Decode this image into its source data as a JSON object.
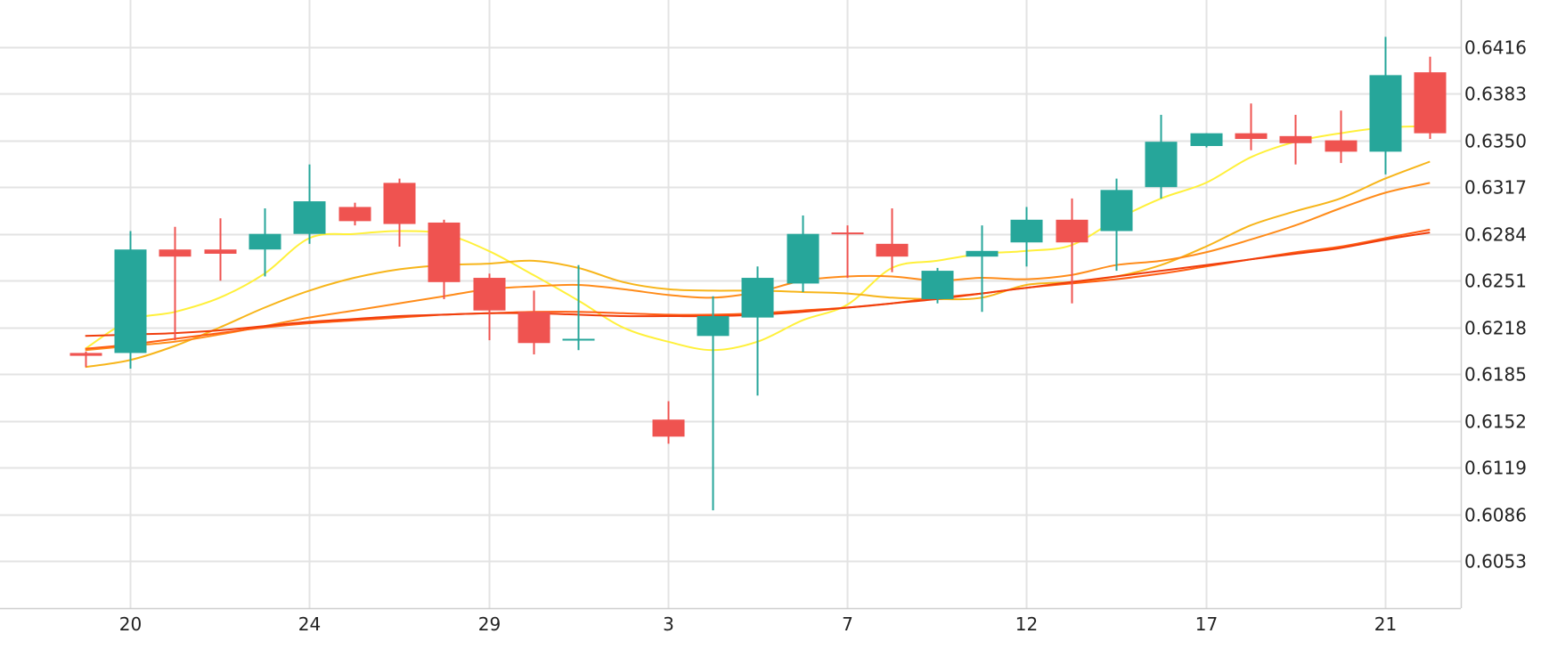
{
  "chart_data": {
    "type": "candlestick",
    "x_tick_labels": [
      "20",
      "24",
      "29",
      "3",
      "7",
      "12",
      "17",
      "21"
    ],
    "y_ticks": [
      0.6416,
      0.6383,
      0.635,
      0.6317,
      0.6284,
      0.6251,
      0.6218,
      0.6185,
      0.6152,
      0.6119,
      0.6086,
      0.6053
    ],
    "y_tick_labels": [
      "0.6416",
      "0.6383",
      "0.6350",
      "0.6317",
      "0.6284",
      "0.6251",
      "0.6218",
      "0.6185",
      "0.6152",
      "0.6119",
      "0.6086",
      "0.6053"
    ],
    "ylim": [
      0.602,
      0.6449
    ],
    "grid": true,
    "colors": {
      "up": "#26a69a",
      "down": "#ef5350",
      "grid": "#e3e3e3",
      "axis": "#cfcfcf"
    },
    "candles": [
      {
        "t": -1,
        "open": 0.62,
        "high": 0.6201,
        "low": 0.619,
        "close": 0.6198
      },
      {
        "t": 0,
        "open": 0.62,
        "high": 0.6286,
        "low": 0.6189,
        "close": 0.6273
      },
      {
        "t": 1,
        "open": 0.6273,
        "high": 0.6289,
        "low": 0.6209,
        "close": 0.6268
      },
      {
        "t": 2,
        "open": 0.6273,
        "high": 0.6295,
        "low": 0.6251,
        "close": 0.627
      },
      {
        "t": 3,
        "open": 0.6273,
        "high": 0.6302,
        "low": 0.6254,
        "close": 0.6284
      },
      {
        "t": 4,
        "open": 0.6284,
        "high": 0.6333,
        "low": 0.6277,
        "close": 0.6307
      },
      {
        "t": 5,
        "open": 0.6303,
        "high": 0.6306,
        "low": 0.629,
        "close": 0.6293
      },
      {
        "t": 6,
        "open": 0.632,
        "high": 0.6323,
        "low": 0.6275,
        "close": 0.6291
      },
      {
        "t": 7,
        "open": 0.6292,
        "high": 0.6294,
        "low": 0.6238,
        "close": 0.625
      },
      {
        "t": 8,
        "open": 0.6253,
        "high": 0.6256,
        "low": 0.6209,
        "close": 0.623
      },
      {
        "t": 9,
        "open": 0.6229,
        "high": 0.6244,
        "low": 0.6199,
        "close": 0.6207
      },
      {
        "t": 10,
        "open": 0.6209,
        "high": 0.6262,
        "low": 0.6202,
        "close": 0.621
      },
      {
        "t": 12,
        "open": 0.6153,
        "high": 0.6166,
        "low": 0.6136,
        "close": 0.6141
      },
      {
        "t": 13,
        "open": 0.6212,
        "high": 0.624,
        "low": 0.6089,
        "close": 0.6226
      },
      {
        "t": 14,
        "open": 0.6225,
        "high": 0.6261,
        "low": 0.617,
        "close": 0.6253
      },
      {
        "t": 15,
        "open": 0.6249,
        "high": 0.6297,
        "low": 0.6243,
        "close": 0.6284
      },
      {
        "t": 16,
        "open": 0.6285,
        "high": 0.629,
        "low": 0.6253,
        "close": 0.6284
      },
      {
        "t": 17,
        "open": 0.6277,
        "high": 0.6302,
        "low": 0.6257,
        "close": 0.6268
      },
      {
        "t": 18,
        "open": 0.6238,
        "high": 0.626,
        "low": 0.6235,
        "close": 0.6258
      },
      {
        "t": 19,
        "open": 0.6268,
        "high": 0.629,
        "low": 0.6229,
        "close": 0.6272
      },
      {
        "t": 20,
        "open": 0.6278,
        "high": 0.6303,
        "low": 0.6261,
        "close": 0.6294
      },
      {
        "t": 21,
        "open": 0.6294,
        "high": 0.6309,
        "low": 0.6235,
        "close": 0.6278
      },
      {
        "t": 22,
        "open": 0.6286,
        "high": 0.6323,
        "low": 0.6258,
        "close": 0.6315
      },
      {
        "t": 23,
        "open": 0.6317,
        "high": 0.6368,
        "low": 0.6309,
        "close": 0.6349
      },
      {
        "t": 24,
        "open": 0.6346,
        "high": 0.6355,
        "low": 0.6345,
        "close": 0.6355
      },
      {
        "t": 25,
        "open": 0.6355,
        "high": 0.6376,
        "low": 0.6343,
        "close": 0.6351
      },
      {
        "t": 26,
        "open": 0.6353,
        "high": 0.6368,
        "low": 0.6333,
        "close": 0.6348
      },
      {
        "t": 27,
        "open": 0.635,
        "high": 0.6371,
        "low": 0.6334,
        "close": 0.6342
      },
      {
        "t": 28,
        "open": 0.6342,
        "high": 0.6423,
        "low": 0.6326,
        "close": 0.6396
      },
      {
        "t": 29,
        "open": 0.6398,
        "high": 0.6409,
        "low": 0.6351,
        "close": 0.6355
      }
    ],
    "moving_averages": [
      {
        "color": "#fff03a",
        "points": [
          [
            -1,
            0.6203
          ],
          [
            0,
            0.6223
          ],
          [
            1,
            0.6229
          ],
          [
            2,
            0.6239
          ],
          [
            3,
            0.6256
          ],
          [
            4,
            0.6281
          ],
          [
            5,
            0.6284
          ],
          [
            6,
            0.6286
          ],
          [
            7,
            0.6284
          ],
          [
            8,
            0.6272
          ],
          [
            9,
            0.6255
          ],
          [
            10,
            0.6237
          ],
          [
            11,
            0.6218
          ],
          [
            12,
            0.6208
          ],
          [
            13,
            0.6202
          ],
          [
            14,
            0.6208
          ],
          [
            15,
            0.6223
          ],
          [
            16,
            0.6234
          ],
          [
            17,
            0.626
          ],
          [
            18,
            0.6265
          ],
          [
            19,
            0.627
          ],
          [
            20,
            0.6272
          ],
          [
            21,
            0.6276
          ],
          [
            22,
            0.6294
          ],
          [
            23,
            0.6309
          ],
          [
            24,
            0.632
          ],
          [
            25,
            0.6338
          ],
          [
            26,
            0.6349
          ],
          [
            27,
            0.6355
          ],
          [
            28,
            0.6359
          ],
          [
            29,
            0.636
          ]
        ]
      },
      {
        "color": "#f7b51a",
        "points": [
          [
            -1,
            0.619
          ],
          [
            0,
            0.6195
          ],
          [
            1,
            0.6205
          ],
          [
            2,
            0.6218
          ],
          [
            3,
            0.6232
          ],
          [
            4,
            0.6244
          ],
          [
            5,
            0.6253
          ],
          [
            6,
            0.6259
          ],
          [
            7,
            0.6262
          ],
          [
            8,
            0.6263
          ],
          [
            9,
            0.6265
          ],
          [
            10,
            0.626
          ],
          [
            11,
            0.625
          ],
          [
            12,
            0.6245
          ],
          [
            13,
            0.6244
          ],
          [
            14,
            0.6244
          ],
          [
            15,
            0.6243
          ],
          [
            16,
            0.6242
          ],
          [
            17,
            0.6239
          ],
          [
            18,
            0.6238
          ],
          [
            19,
            0.6239
          ],
          [
            20,
            0.6248
          ],
          [
            21,
            0.625
          ],
          [
            22,
            0.6254
          ],
          [
            23,
            0.6262
          ],
          [
            24,
            0.6275
          ],
          [
            25,
            0.629
          ],
          [
            26,
            0.63
          ],
          [
            27,
            0.6309
          ],
          [
            28,
            0.6323
          ],
          [
            29,
            0.6335
          ]
        ]
      },
      {
        "color": "#ff8c1a",
        "points": [
          [
            -1,
            0.6202
          ],
          [
            0,
            0.6205
          ],
          [
            1,
            0.6208
          ],
          [
            2,
            0.6213
          ],
          [
            3,
            0.6219
          ],
          [
            4,
            0.6225
          ],
          [
            5,
            0.623
          ],
          [
            6,
            0.6235
          ],
          [
            7,
            0.624
          ],
          [
            8,
            0.6245
          ],
          [
            9,
            0.6247
          ],
          [
            10,
            0.6248
          ],
          [
            11,
            0.6245
          ],
          [
            12,
            0.6241
          ],
          [
            13,
            0.6239
          ],
          [
            14,
            0.6243
          ],
          [
            15,
            0.6251
          ],
          [
            16,
            0.6254
          ],
          [
            17,
            0.6254
          ],
          [
            18,
            0.6251
          ],
          [
            19,
            0.6253
          ],
          [
            20,
            0.6252
          ],
          [
            21,
            0.6255
          ],
          [
            22,
            0.6262
          ],
          [
            23,
            0.6265
          ],
          [
            24,
            0.6271
          ],
          [
            25,
            0.628
          ],
          [
            26,
            0.629
          ],
          [
            27,
            0.6302
          ],
          [
            28,
            0.6313
          ],
          [
            29,
            0.632
          ]
        ]
      },
      {
        "color": "#ff5e14",
        "points": [
          [
            -1,
            0.6203
          ],
          [
            0,
            0.6206
          ],
          [
            1,
            0.621
          ],
          [
            2,
            0.6214
          ],
          [
            3,
            0.6218
          ],
          [
            4,
            0.6221
          ],
          [
            5,
            0.6223
          ],
          [
            6,
            0.6225
          ],
          [
            7,
            0.6227
          ],
          [
            8,
            0.6228
          ],
          [
            9,
            0.6229
          ],
          [
            10,
            0.6229
          ],
          [
            11,
            0.6228
          ],
          [
            12,
            0.6227
          ],
          [
            13,
            0.6227
          ],
          [
            14,
            0.6228
          ],
          [
            15,
            0.623
          ],
          [
            16,
            0.6232
          ],
          [
            17,
            0.6235
          ],
          [
            18,
            0.6239
          ],
          [
            19,
            0.6242
          ],
          [
            20,
            0.6246
          ],
          [
            21,
            0.6249
          ],
          [
            22,
            0.6252
          ],
          [
            23,
            0.6256
          ],
          [
            24,
            0.6261
          ],
          [
            25,
            0.6266
          ],
          [
            26,
            0.6271
          ],
          [
            27,
            0.6275
          ],
          [
            28,
            0.6281
          ],
          [
            29,
            0.6287
          ]
        ]
      },
      {
        "color": "#f03d0c",
        "points": [
          [
            -1,
            0.6212
          ],
          [
            0,
            0.6213
          ],
          [
            1,
            0.6214
          ],
          [
            2,
            0.6216
          ],
          [
            3,
            0.6219
          ],
          [
            4,
            0.6222
          ],
          [
            5,
            0.6224
          ],
          [
            6,
            0.6226
          ],
          [
            7,
            0.6227
          ],
          [
            8,
            0.6228
          ],
          [
            9,
            0.6228
          ],
          [
            10,
            0.6227
          ],
          [
            11,
            0.6226
          ],
          [
            12,
            0.6226
          ],
          [
            13,
            0.6226
          ],
          [
            14,
            0.6227
          ],
          [
            15,
            0.6229
          ],
          [
            16,
            0.6232
          ],
          [
            17,
            0.6235
          ],
          [
            18,
            0.6238
          ],
          [
            19,
            0.6242
          ],
          [
            20,
            0.6246
          ],
          [
            21,
            0.625
          ],
          [
            22,
            0.6254
          ],
          [
            23,
            0.6258
          ],
          [
            24,
            0.6262
          ],
          [
            25,
            0.6266
          ],
          [
            26,
            0.627
          ],
          [
            27,
            0.6274
          ],
          [
            28,
            0.628
          ],
          [
            29,
            0.6285
          ]
        ]
      }
    ]
  }
}
